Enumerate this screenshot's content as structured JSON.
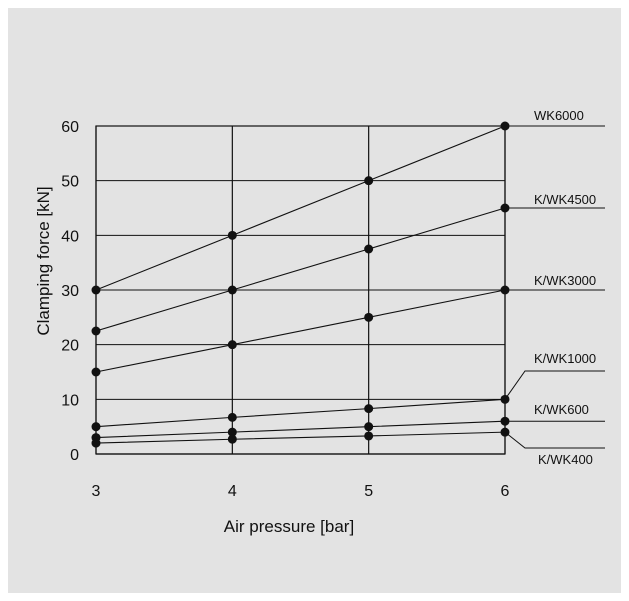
{
  "chart_data": {
    "type": "line",
    "title": "",
    "xlabel": "Air pressure [bar]",
    "ylabel": "Clamping force [kN]",
    "x": [
      3,
      4,
      5,
      6
    ],
    "xlim": [
      3,
      6
    ],
    "ylim": [
      0,
      60
    ],
    "x_ticks": [
      "3",
      "4",
      "5",
      "6"
    ],
    "y_ticks": [
      "0",
      "10",
      "20",
      "30",
      "40",
      "50",
      "60"
    ],
    "grid": true,
    "legend": "labels at right end of each line",
    "series": [
      {
        "name": "WK6000",
        "values": [
          30,
          40,
          50,
          60
        ]
      },
      {
        "name": "K/WK4500",
        "values": [
          22.5,
          30,
          37.5,
          45
        ]
      },
      {
        "name": "K/WK3000",
        "values": [
          15,
          20,
          25,
          30
        ]
      },
      {
        "name": "K/WK1000",
        "values": [
          5,
          6.7,
          8.3,
          10
        ]
      },
      {
        "name": "K/WK600",
        "values": [
          3,
          4,
          5,
          6
        ]
      },
      {
        "name": "K/WK400",
        "values": [
          2,
          2.7,
          3.3,
          4
        ]
      }
    ],
    "line_color": "#111111",
    "background_color": "#e3e3e3"
  }
}
